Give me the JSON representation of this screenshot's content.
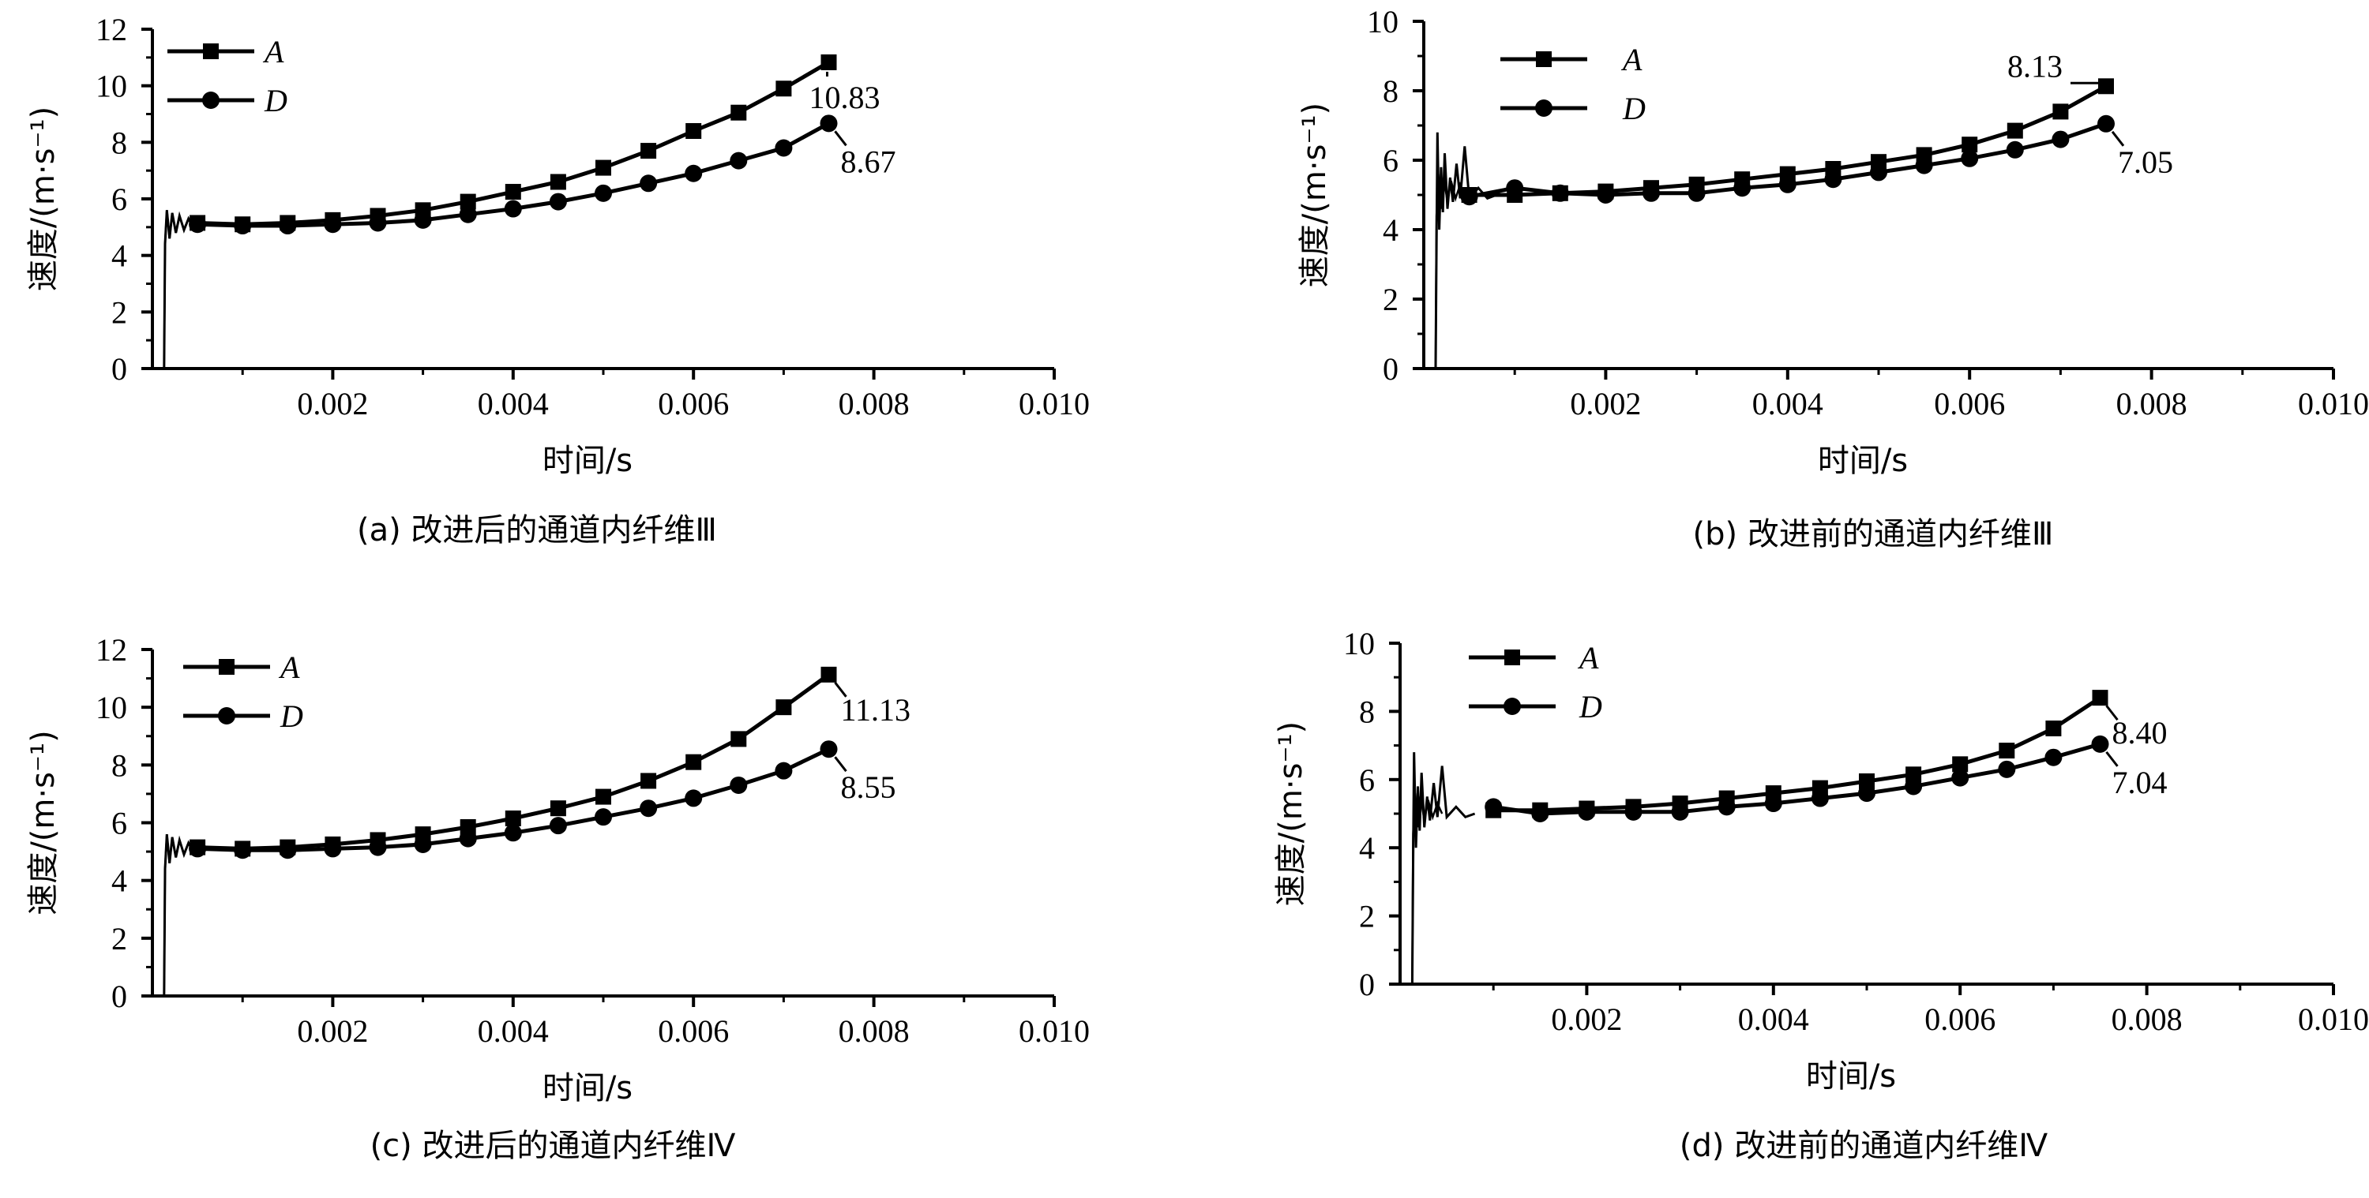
{
  "chart_data": [
    {
      "type": "line",
      "panel": "a",
      "caption": "(a)  改进后的通道内纤维Ⅲ",
      "xlabel": "时间/s",
      "ylabel": "速度/(m·s⁻¹)",
      "xlim": [
        0,
        0.01
      ],
      "ylim": [
        0,
        12
      ],
      "xticks": [
        "0.002",
        "0.004",
        "0.006",
        "0.008",
        "0.010"
      ],
      "yticks": [
        "0",
        "2",
        "4",
        "6",
        "8",
        "10",
        "12"
      ],
      "legend_position": "top-left",
      "series": [
        {
          "name": "A",
          "marker": "square",
          "x": [
            0.0005,
            0.001,
            0.0015,
            0.002,
            0.0025,
            0.003,
            0.0035,
            0.004,
            0.0045,
            0.005,
            0.0055,
            0.006,
            0.0065,
            0.007,
            0.0075
          ],
          "y": [
            5.15,
            5.1,
            5.15,
            5.25,
            5.4,
            5.6,
            5.9,
            6.25,
            6.6,
            7.1,
            7.7,
            8.4,
            9.05,
            9.9,
            10.83
          ]
        },
        {
          "name": "D",
          "marker": "circle",
          "x": [
            0.0005,
            0.001,
            0.0015,
            0.002,
            0.0025,
            0.003,
            0.0035,
            0.004,
            0.0045,
            0.005,
            0.0055,
            0.006,
            0.0065,
            0.007,
            0.0075
          ],
          "y": [
            5.1,
            5.05,
            5.05,
            5.1,
            5.15,
            5.25,
            5.45,
            5.65,
            5.9,
            6.2,
            6.55,
            6.9,
            7.35,
            7.8,
            8.67
          ]
        }
      ],
      "annotations": [
        {
          "series": "A",
          "text": "10.83"
        },
        {
          "series": "D",
          "text": "8.67"
        }
      ]
    },
    {
      "type": "line",
      "panel": "b",
      "caption": "(b)  改进前的通道内纤维Ⅲ",
      "xlabel": "时间/s",
      "ylabel": "速度/(m·s⁻¹)",
      "xlim": [
        0,
        0.01
      ],
      "ylim": [
        0,
        10
      ],
      "xticks": [
        "0.002",
        "0.004",
        "0.006",
        "0.008",
        "0.010"
      ],
      "yticks": [
        "0",
        "2",
        "4",
        "6",
        "8",
        "10"
      ],
      "legend_position": "top-left",
      "series": [
        {
          "name": "A",
          "marker": "square",
          "x": [
            0.0005,
            0.001,
            0.0015,
            0.002,
            0.0025,
            0.003,
            0.0035,
            0.004,
            0.0045,
            0.005,
            0.0055,
            0.006,
            0.0065,
            0.007,
            0.0075
          ],
          "y": [
            5.0,
            5.0,
            5.05,
            5.1,
            5.2,
            5.3,
            5.45,
            5.6,
            5.75,
            5.95,
            6.15,
            6.45,
            6.85,
            7.4,
            8.13
          ]
        },
        {
          "name": "D",
          "marker": "circle",
          "x": [
            0.0005,
            0.001,
            0.0015,
            0.002,
            0.0025,
            0.003,
            0.0035,
            0.004,
            0.0045,
            0.005,
            0.0055,
            0.006,
            0.0065,
            0.007,
            0.0075
          ],
          "y": [
            4.95,
            5.2,
            5.05,
            5.0,
            5.05,
            5.05,
            5.2,
            5.3,
            5.45,
            5.65,
            5.85,
            6.05,
            6.3,
            6.6,
            7.05
          ]
        }
      ],
      "annotations": [
        {
          "series": "A",
          "text": "8.13"
        },
        {
          "series": "D",
          "text": "7.05"
        }
      ]
    },
    {
      "type": "line",
      "panel": "c",
      "caption": "(c)  改进后的通道内纤维Ⅳ",
      "xlabel": "时间/s",
      "ylabel": "速度/(m·s⁻¹)",
      "xlim": [
        0,
        0.01
      ],
      "ylim": [
        0,
        12
      ],
      "xticks": [
        "0.002",
        "0.004",
        "0.006",
        "0.008",
        "0.010"
      ],
      "yticks": [
        "0",
        "2",
        "4",
        "6",
        "8",
        "10",
        "12"
      ],
      "legend_position": "top-left",
      "series": [
        {
          "name": "A",
          "marker": "square",
          "x": [
            0.0005,
            0.001,
            0.0015,
            0.002,
            0.0025,
            0.003,
            0.0035,
            0.004,
            0.0045,
            0.005,
            0.0055,
            0.006,
            0.0065,
            0.007,
            0.0075
          ],
          "y": [
            5.15,
            5.1,
            5.15,
            5.25,
            5.4,
            5.6,
            5.85,
            6.15,
            6.5,
            6.9,
            7.45,
            8.1,
            8.9,
            10.0,
            11.13
          ]
        },
        {
          "name": "D",
          "marker": "circle",
          "x": [
            0.0005,
            0.001,
            0.0015,
            0.002,
            0.0025,
            0.003,
            0.0035,
            0.004,
            0.0045,
            0.005,
            0.0055,
            0.006,
            0.0065,
            0.007,
            0.0075
          ],
          "y": [
            5.1,
            5.05,
            5.05,
            5.1,
            5.15,
            5.25,
            5.45,
            5.65,
            5.9,
            6.2,
            6.5,
            6.85,
            7.3,
            7.8,
            8.55
          ]
        }
      ],
      "annotations": [
        {
          "series": "A",
          "text": "11.13"
        },
        {
          "series": "D",
          "text": "8.55"
        }
      ]
    },
    {
      "type": "line",
      "panel": "d",
      "caption": "(d)  改进前的通道内纤维Ⅳ",
      "xlabel": "时间/s",
      "ylabel": "速度/(m·s⁻¹)",
      "xlim": [
        0,
        0.01
      ],
      "ylim": [
        0,
        10
      ],
      "xticks": [
        "0.002",
        "0.004",
        "0.006",
        "0.008",
        "0.010"
      ],
      "yticks": [
        "0",
        "2",
        "4",
        "6",
        "8",
        "10"
      ],
      "legend_position": "top-left",
      "series": [
        {
          "name": "A",
          "marker": "square",
          "x": [
            0.001,
            0.0015,
            0.002,
            0.0025,
            0.003,
            0.0035,
            0.004,
            0.0045,
            0.005,
            0.0055,
            0.006,
            0.0065,
            0.007,
            0.0075
          ],
          "y": [
            5.1,
            5.1,
            5.15,
            5.2,
            5.3,
            5.45,
            5.6,
            5.75,
            5.95,
            6.15,
            6.45,
            6.85,
            7.5,
            8.4
          ]
        },
        {
          "name": "D",
          "marker": "circle",
          "x": [
            0.001,
            0.0015,
            0.002,
            0.0025,
            0.003,
            0.0035,
            0.004,
            0.0045,
            0.005,
            0.0055,
            0.006,
            0.0065,
            0.007,
            0.0075
          ],
          "y": [
            5.2,
            5.0,
            5.05,
            5.05,
            5.05,
            5.2,
            5.3,
            5.45,
            5.6,
            5.8,
            6.05,
            6.3,
            6.65,
            7.04
          ]
        }
      ],
      "annotations": [
        {
          "series": "A",
          "text": "8.40"
        },
        {
          "series": "D",
          "text": "7.04"
        }
      ]
    }
  ]
}
